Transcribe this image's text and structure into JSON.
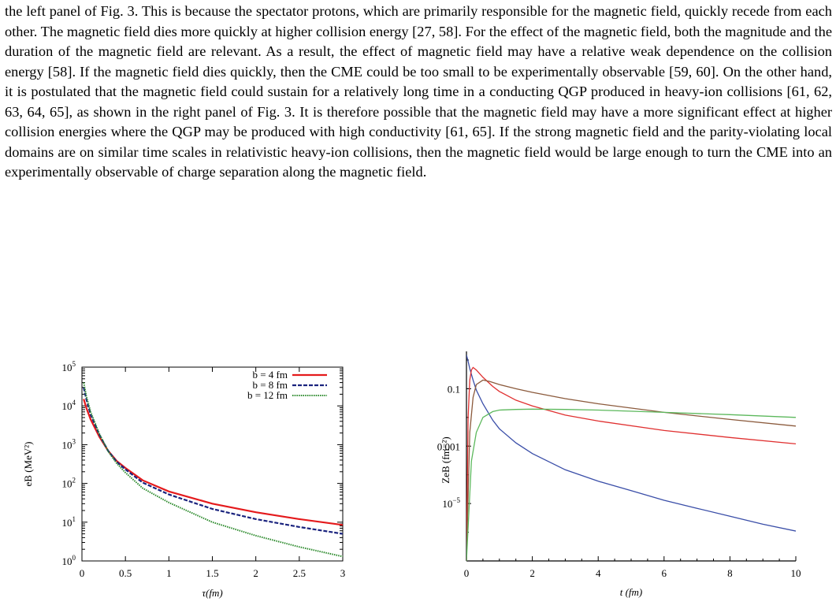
{
  "paragraph": "the left panel of Fig. 3. This is because the spectator protons, which are primarily responsible for the magnetic field, quickly recede from each other. The magnetic field dies more quickly at higher collision energy [27, 58]. For the effect of the magnetic field, both the magnitude and the duration of the magnetic field are relevant. As a result, the effect of magnetic field may have a relative weak dependence on the collision energy [58]. If the magnetic field dies quickly, then the CME could be too small to be experimentally observable [59, 60]. On the other hand, it is postulated that the magnetic field could sustain for a relatively long time in a conducting QGP produced in heavy-ion collisions [61, 62, 63, 64, 65], as shown in the right panel of Fig. 3. It is therefore possible that the magnetic field may have a more significant effect at higher collision energies where the QGP may be produced with high conductivity [61, 65]. If the strong magnetic field and the parity-violating local domains are on similar time scales in relativistic heavy-ion collisions, then the magnetic field would be large enough to turn the CME into an experimentally observable of charge separation along the magnetic field.",
  "chart_data": [
    {
      "type": "line",
      "xlabel": "τ(fm)",
      "ylabel": "eB (MeV²)",
      "xlim": [
        0,
        3
      ],
      "ylim": [
        1,
        100000
      ],
      "yscale": "log",
      "xticks": [
        "0",
        "0.5",
        "1",
        "1.5",
        "2",
        "2.5",
        "3"
      ],
      "yticks": [
        "10^0",
        "10^1",
        "10^2",
        "10^3",
        "10^4",
        "10^5"
      ],
      "legend_position": "top-right",
      "series": [
        {
          "name": "b = 4 fm",
          "color": "#e41a1c",
          "style": "solid",
          "x": [
            0.02,
            0.05,
            0.1,
            0.2,
            0.3,
            0.4,
            0.5,
            0.7,
            1.0,
            1.5,
            2.0,
            2.5,
            3.0
          ],
          "y": [
            15000,
            9000,
            4500,
            1600,
            700,
            380,
            250,
            120,
            62,
            30,
            18,
            12,
            8.5
          ]
        },
        {
          "name": "b = 8 fm",
          "color": "#1a237e",
          "style": "dashed",
          "x": [
            0.02,
            0.05,
            0.1,
            0.2,
            0.3,
            0.4,
            0.5,
            0.7,
            1.0,
            1.5,
            2.0,
            2.5,
            3.0
          ],
          "y": [
            30000,
            15000,
            6000,
            1800,
            700,
            360,
            230,
            105,
            52,
            22,
            12,
            7.5,
            5
          ]
        },
        {
          "name": "b = 12 fm",
          "color": "#2e8b2e",
          "style": "dotted",
          "x": [
            0.02,
            0.05,
            0.1,
            0.2,
            0.3,
            0.4,
            0.5,
            0.7,
            1.0,
            1.5,
            2.0,
            2.5,
            3.0
          ],
          "y": [
            40000,
            18000,
            7000,
            1900,
            680,
            330,
            190,
            75,
            32,
            10,
            4.5,
            2.3,
            1.3
          ]
        }
      ]
    },
    {
      "type": "line",
      "xlabel": "t (fm)",
      "ylabel": "ZeB (fm⁻²)",
      "xlim": [
        0,
        10
      ],
      "ylim": [
        1e-07,
        2
      ],
      "yscale": "log",
      "xticks": [
        "0",
        "2",
        "4",
        "6",
        "8",
        "10"
      ],
      "yticks": [
        "0.1",
        "0.001",
        "10^-5"
      ],
      "series": [
        {
          "color": "#3a4ea8",
          "x": [
            0.0,
            0.05,
            0.1,
            0.2,
            0.3,
            0.5,
            0.8,
            1.0,
            1.5,
            2.0,
            3.0,
            4.0,
            5.0,
            6.0,
            7.0,
            8.0,
            9.0,
            10.0
          ],
          "y": [
            1.5,
            0.9,
            0.5,
            0.2,
            0.09,
            0.03,
            0.008,
            0.004,
            0.0013,
            0.00055,
            0.00015,
            6e-05,
            2.8e-05,
            1.3e-05,
            6.8e-06,
            3.6e-06,
            1.9e-06,
            1.1e-06
          ]
        },
        {
          "color": "#e03030",
          "x": [
            0.0,
            0.05,
            0.1,
            0.15,
            0.2,
            0.3,
            0.5,
            0.8,
            1.0,
            1.5,
            2.0,
            3.0,
            4.0,
            6.0,
            8.0,
            10.0
          ],
          "y": [
            1e-07,
            0.01,
            0.2,
            0.45,
            0.55,
            0.45,
            0.25,
            0.12,
            0.08,
            0.04,
            0.025,
            0.012,
            0.0075,
            0.0035,
            0.002,
            0.0012
          ]
        },
        {
          "color": "#8b5a3c",
          "x": [
            0.0,
            0.1,
            0.2,
            0.3,
            0.5,
            0.7,
            1.0,
            1.5,
            2.0,
            3.0,
            4.0,
            6.0,
            8.0,
            10.0
          ],
          "y": [
            1e-07,
            0.003,
            0.05,
            0.14,
            0.2,
            0.18,
            0.14,
            0.1,
            0.075,
            0.045,
            0.03,
            0.015,
            0.0085,
            0.005
          ]
        },
        {
          "color": "#5cb85c",
          "x": [
            0.0,
            0.15,
            0.3,
            0.5,
            0.8,
            1.0,
            1.5,
            2.0,
            3.0,
            4.0,
            6.0,
            8.0,
            10.0
          ],
          "y": [
            1e-07,
            0.0003,
            0.003,
            0.01,
            0.016,
            0.018,
            0.019,
            0.0195,
            0.019,
            0.018,
            0.015,
            0.0125,
            0.01
          ]
        }
      ]
    }
  ]
}
